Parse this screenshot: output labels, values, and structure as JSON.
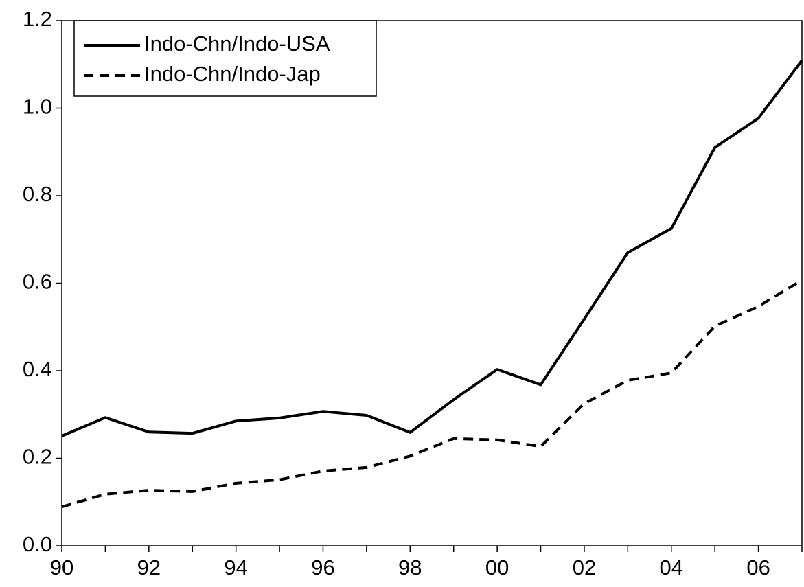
{
  "chart_data": {
    "type": "line",
    "categories": [
      "90",
      null,
      "92",
      null,
      "94",
      null,
      "96",
      null,
      "98",
      null,
      "00",
      null,
      "02",
      null,
      "04",
      null,
      "06",
      null
    ],
    "series": [
      {
        "name": "Indo-Chn/Indo-USA",
        "color": "#000000",
        "dash": "solid",
        "values": [
          0.251,
          0.293,
          0.26,
          0.257,
          0.285,
          0.292,
          0.307,
          0.298,
          0.259,
          0.334,
          0.403,
          0.368,
          0.518,
          0.67,
          0.725,
          0.91,
          0.977,
          1.109
        ]
      },
      {
        "name": "Indo-Chn/Indo-Jap",
        "color": "#000000",
        "dash": "dashed",
        "values": [
          0.089,
          0.118,
          0.127,
          0.124,
          0.143,
          0.151,
          0.171,
          0.179,
          0.205,
          0.245,
          0.242,
          0.227,
          0.325,
          0.378,
          0.395,
          0.502,
          0.547,
          0.607
        ]
      }
    ],
    "ylim": [
      0,
      1.2
    ],
    "yticks": [
      {
        "value": 0,
        "label": "0.0"
      },
      0.2,
      0.4,
      0.6,
      0.8,
      {
        "value": 1,
        "label": "1.0"
      },
      1.2
    ],
    "grid": false,
    "legend": "upper left"
  }
}
